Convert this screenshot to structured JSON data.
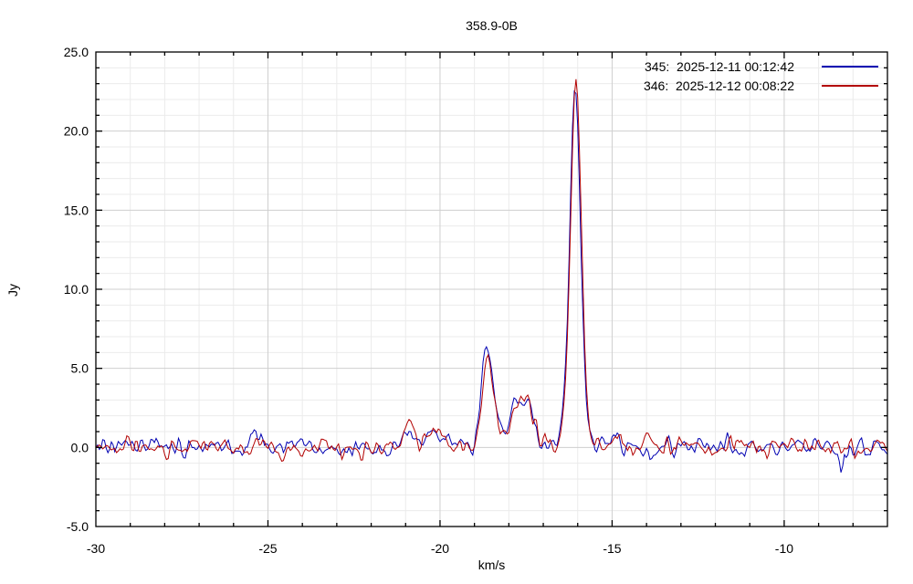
{
  "page": {
    "background": "#ffffff"
  },
  "chart_data": {
    "type": "line",
    "title": "358.9-0B",
    "xlabel": "km/s",
    "ylabel": "Jy",
    "xlim": [
      -30,
      -7
    ],
    "ylim": [
      -5.0,
      25.0
    ],
    "x_major_ticks": [
      -30,
      -25,
      -20,
      -15,
      -10
    ],
    "x_minor_step": 1,
    "y_major_ticks": [
      -5,
      0,
      5,
      10,
      15,
      20,
      25
    ],
    "y_minor_step": 1,
    "y_tick_decimals": 1,
    "grid": true,
    "legend_position": "top-right",
    "axis_color": "#000000",
    "grid_minor_color": "#ebebeb",
    "grid_major_color": "#cfcfcf",
    "channel_width_kms": 0.05,
    "series": [
      {
        "id": "345",
        "label": "345:  2025-12-11 00:12:42",
        "color": "#0000b2",
        "seed": 3451,
        "baseline": 0.0,
        "noise_sigma": 0.5,
        "peak_flux_jy": 22.6,
        "peak_velocity_kms": -16.1,
        "peaks": [
          [
            -16.07,
            20.0,
            0.15
          ],
          [
            -16.09,
            2.6,
            0.3
          ],
          [
            -18.64,
            5.2,
            0.15
          ],
          [
            -18.5,
            1.0,
            0.25
          ],
          [
            -17.48,
            2.2,
            0.16
          ],
          [
            -17.82,
            1.5,
            0.14
          ],
          [
            -17.9,
            0.8,
            0.5
          ],
          [
            -20.9,
            1.1,
            0.18
          ],
          [
            -20.15,
            1.1,
            0.22
          ],
          [
            -14.9,
            0.8,
            0.12
          ],
          [
            -25.35,
            1.0,
            0.12
          ],
          [
            -13.78,
            -1.2,
            0.1
          ],
          [
            -8.33,
            -1.05,
            0.09
          ]
        ]
      },
      {
        "id": "346",
        "label": "346:  2025-12-12 00:08:22",
        "color": "#b20000",
        "seed": 3462,
        "baseline": 0.0,
        "noise_sigma": 0.48,
        "peak_flux_jy": 23.3,
        "peak_velocity_kms": -16.1,
        "peaks": [
          [
            -16.05,
            20.7,
            0.15
          ],
          [
            -16.07,
            2.6,
            0.3
          ],
          [
            -18.63,
            4.6,
            0.15
          ],
          [
            -18.5,
            1.0,
            0.25
          ],
          [
            -17.46,
            2.4,
            0.16
          ],
          [
            -17.82,
            1.6,
            0.14
          ],
          [
            -17.9,
            0.8,
            0.5
          ],
          [
            -20.9,
            1.3,
            0.18
          ],
          [
            -20.15,
            1.1,
            0.22
          ],
          [
            -14.9,
            0.8,
            0.12
          ],
          [
            -13.95,
            0.7,
            0.12
          ],
          [
            -24.6,
            -0.9,
            0.11
          ]
        ]
      }
    ]
  }
}
